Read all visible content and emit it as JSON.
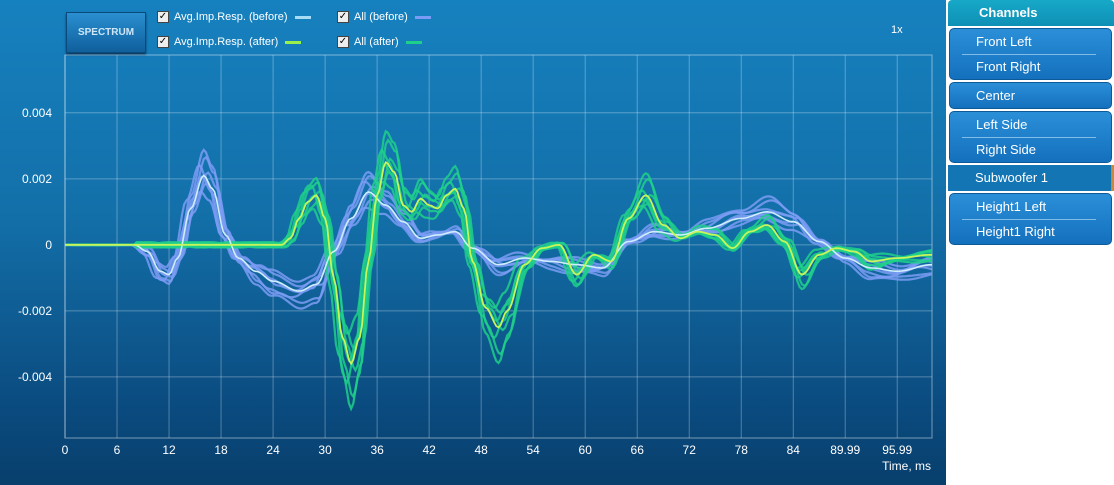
{
  "toolbar": {
    "spectrum_label": "SPECTRUM",
    "zoom_label": "1x"
  },
  "legend": [
    {
      "label": "Avg.Imp.Resp. (before)",
      "checked": true,
      "color": "#a8dcf5"
    },
    {
      "label": "All (before)",
      "checked": true,
      "color": "#7b9cf5"
    },
    {
      "label": "Avg.Imp.Resp. (after)",
      "checked": true,
      "color": "#9af04a"
    },
    {
      "label": "All (after)",
      "checked": true,
      "color": "#1fd08a"
    }
  ],
  "channels": {
    "title": "Channels",
    "groups": [
      [
        "Front Left",
        "Front Right"
      ],
      [
        "Center"
      ],
      [
        "Left Side",
        "Right Side"
      ],
      [
        "Subwoofer 1"
      ],
      [
        "Height1 Left",
        "Height1 Right"
      ]
    ],
    "selected": "Subwoofer 1"
  },
  "chart_data": {
    "type": "line",
    "xlabel": "Time, ms",
    "ylabel": "",
    "xlim": [
      0,
      100
    ],
    "ylim": [
      -0.00585,
      0.00575
    ],
    "xticks": [
      "0",
      "6",
      "12",
      "18",
      "24",
      "30",
      "36",
      "42",
      "48",
      "54",
      "60",
      "66",
      "72",
      "78",
      "84",
      "89.99",
      "95.99"
    ],
    "xtick_values": [
      0,
      6,
      12,
      18,
      24,
      30,
      36,
      42,
      48,
      54,
      60,
      66,
      72,
      78,
      84,
      89.99,
      95.99
    ],
    "yticks": [
      "0.004",
      "0.002",
      "0",
      "-0.002",
      "-0.004"
    ],
    "ytick_values": [
      0.004,
      0.002,
      0,
      -0.002,
      -0.004
    ],
    "grid": true,
    "series": [
      {
        "name": "Avg.Imp.Resp. (before)",
        "color": "#cfeefc",
        "points": [
          [
            0,
            0
          ],
          [
            8,
            0
          ],
          [
            9.5,
            -0.0002
          ],
          [
            11,
            -0.0008
          ],
          [
            12,
            -0.0009
          ],
          [
            13,
            -0.0004
          ],
          [
            14.5,
            0.0011
          ],
          [
            16,
            0.0021
          ],
          [
            17,
            0.0017
          ],
          [
            18.5,
            0.0003
          ],
          [
            20,
            -0.0004
          ],
          [
            22,
            -0.0008
          ],
          [
            24,
            -0.0011
          ],
          [
            27,
            -0.0014
          ],
          [
            29,
            -0.0012
          ],
          [
            31,
            -0.0002
          ],
          [
            33,
            0.0008
          ],
          [
            35,
            0.0016
          ],
          [
            37,
            0.0012
          ],
          [
            39,
            0.0007
          ],
          [
            41,
            0.0002
          ],
          [
            43,
            0.0003
          ],
          [
            45,
            0.0004
          ],
          [
            47,
            -0.0001
          ],
          [
            50,
            -0.0006
          ],
          [
            53,
            -0.0004
          ],
          [
            56,
            -0.0005
          ],
          [
            59,
            -0.0006
          ],
          [
            62,
            -0.0007
          ],
          [
            65,
            0.0001
          ],
          [
            68,
            0.0004
          ],
          [
            71,
            0.0003
          ],
          [
            74,
            0.0005
          ],
          [
            78,
            0.0008
          ],
          [
            81,
            0.001
          ],
          [
            84,
            0.0007
          ],
          [
            87,
            0.0001
          ],
          [
            90,
            -0.0004
          ],
          [
            93,
            -0.0007
          ],
          [
            96,
            -0.0008
          ],
          [
            100,
            -0.0006
          ]
        ]
      },
      {
        "name": "Avg.Imp.Resp. (after)",
        "color": "#c8f55a",
        "points": [
          [
            0,
            0
          ],
          [
            25,
            0
          ],
          [
            26,
            0.0002
          ],
          [
            27,
            0.0008
          ],
          [
            28,
            0.0013
          ],
          [
            29,
            0.0015
          ],
          [
            30,
            0.0008
          ],
          [
            31,
            -0.001
          ],
          [
            32,
            -0.0028
          ],
          [
            33,
            -0.0036
          ],
          [
            34,
            -0.0028
          ],
          [
            35,
            -0.0005
          ],
          [
            36,
            0.0015
          ],
          [
            37,
            0.0025
          ],
          [
            38,
            0.0022
          ],
          [
            39,
            0.0012
          ],
          [
            40,
            0.001
          ],
          [
            41,
            0.0014
          ],
          [
            42,
            0.0012
          ],
          [
            43,
            0.0011
          ],
          [
            44,
            0.0015
          ],
          [
            45,
            0.0017
          ],
          [
            46,
            0.0011
          ],
          [
            47,
            -0.0005
          ],
          [
            48.5,
            -0.0019
          ],
          [
            50,
            -0.0025
          ],
          [
            51,
            -0.002
          ],
          [
            53,
            -0.0006
          ],
          [
            55,
            -0.0001
          ],
          [
            57,
            0
          ],
          [
            59,
            -0.0009
          ],
          [
            61,
            -0.0003
          ],
          [
            63,
            -0.0005
          ],
          [
            65,
            0.0008
          ],
          [
            67,
            0.0015
          ],
          [
            69,
            0.0006
          ],
          [
            71,
            0.0002
          ],
          [
            73,
            0.0004
          ],
          [
            75,
            0.0003
          ],
          [
            77,
            -0.0001
          ],
          [
            79,
            0.0004
          ],
          [
            81,
            0.0006
          ],
          [
            83,
            0.0001
          ],
          [
            85,
            -0.0009
          ],
          [
            87,
            -0.0003
          ],
          [
            89,
            -0.0001
          ],
          [
            91,
            -0.0002
          ],
          [
            93,
            -0.0005
          ],
          [
            96,
            -0.0004
          ],
          [
            100,
            -0.0003
          ]
        ]
      }
    ],
    "all_variants": {
      "amplitude_factors": [
        0.75,
        0.85,
        0.95,
        1.05,
        1.15,
        1.3,
        1.4
      ],
      "time_shifts_ms": [
        -0.4,
        0.3,
        -0.2,
        0.5,
        -0.5,
        0.2,
        0
      ]
    }
  }
}
